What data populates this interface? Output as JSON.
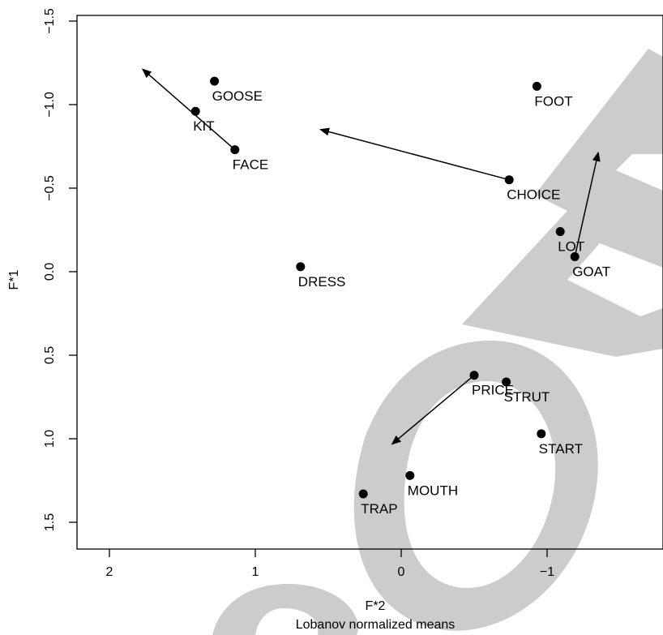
{
  "chart_data": {
    "type": "scatter",
    "title": "",
    "xlabel": "F*2",
    "ylabel": "F*1",
    "caption": "Lobanov normalized means",
    "xlim": [
      2.2,
      -1.77
    ],
    "ylim": [
      -1.5,
      1.65
    ],
    "x_reversed": true,
    "y_reversed": true,
    "xticks": [
      {
        "value": 2,
        "label": "2"
      },
      {
        "value": 1,
        "label": "1"
      },
      {
        "value": 0,
        "label": "0"
      },
      {
        "value": -1,
        "label": "−1"
      }
    ],
    "yticks": [
      {
        "value": -1.5,
        "label": "−1.5"
      },
      {
        "value": -1.0,
        "label": "−1.0"
      },
      {
        "value": -0.5,
        "label": "−0.5"
      },
      {
        "value": 0.0,
        "label": "0.0"
      },
      {
        "value": 0.5,
        "label": "0.5"
      },
      {
        "value": 1.0,
        "label": "1.0"
      },
      {
        "value": 1.5,
        "label": "1.5"
      }
    ],
    "grid": false,
    "points": [
      {
        "label": "GOOSE",
        "x": 1.28,
        "y": -1.14
      },
      {
        "label": "KIT",
        "x": 1.41,
        "y": -0.96
      },
      {
        "label": "FACE",
        "x": 1.14,
        "y": -0.73
      },
      {
        "label": "FOOT",
        "x": -0.93,
        "y": -1.11
      },
      {
        "label": "CHOICE",
        "x": -0.74,
        "y": -0.55
      },
      {
        "label": "LOT",
        "x": -1.09,
        "y": -0.24
      },
      {
        "label": "GOAT",
        "x": -1.19,
        "y": -0.09
      },
      {
        "label": "DRESS",
        "x": 0.69,
        "y": -0.03
      },
      {
        "label": "PRICE",
        "x": -0.5,
        "y": 0.62
      },
      {
        "label": "STRUT",
        "x": -0.72,
        "y": 0.66
      },
      {
        "label": "START",
        "x": -0.96,
        "y": 0.97
      },
      {
        "label": "MOUTH",
        "x": -0.06,
        "y": 1.22
      },
      {
        "label": "TRAP",
        "x": 0.26,
        "y": 1.33
      }
    ],
    "arrows": [
      {
        "from": "FACE",
        "x1": 1.14,
        "y1": -0.73,
        "x2": 1.77,
        "y2": -1.21
      },
      {
        "from": "CHOICE",
        "x1": -0.74,
        "y1": -0.55,
        "x2": 0.55,
        "y2": -0.85
      },
      {
        "from": "GOAT",
        "x1": -1.19,
        "y1": -0.09,
        "x2": -1.35,
        "y2": -0.71
      },
      {
        "from": "PRICE",
        "x1": -0.5,
        "y1": 0.62,
        "x2": 0.06,
        "y2": 1.03
      }
    ],
    "colors": {
      "points": "#000000",
      "watermark": "#cccccc"
    }
  }
}
